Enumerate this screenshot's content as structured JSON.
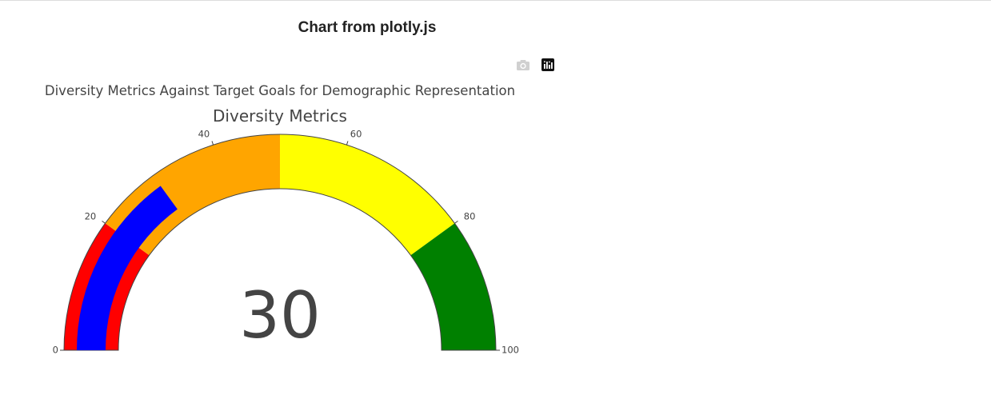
{
  "page": {
    "title": "Chart from plotly.js"
  },
  "modebar": {
    "buttons": [
      {
        "name": "download-plot-button",
        "icon": "camera-icon"
      },
      {
        "name": "plotly-logo-button",
        "icon": "plotly-logo-icon"
      }
    ]
  },
  "chart_data": {
    "type": "gauge",
    "title": "Diversity Metrics Against Target Goals for Demographic Representation",
    "gauge_title": "Diversity Metrics",
    "value": 30,
    "value_label": "30",
    "axis": {
      "range": [
        0,
        100
      ],
      "tickvals": [
        0,
        20,
        40,
        60,
        80,
        100
      ],
      "ticktext": [
        "0",
        "20",
        "40",
        "60",
        "80",
        "100"
      ]
    },
    "bar": {
      "color": "#0000ff"
    },
    "steps": [
      {
        "range": [
          0,
          20
        ],
        "color": "#ff0000"
      },
      {
        "range": [
          20,
          50
        ],
        "color": "#ffa500"
      },
      {
        "range": [
          50,
          80
        ],
        "color": "#ffff00"
      },
      {
        "range": [
          80,
          100
        ],
        "color": "#008000"
      }
    ]
  }
}
